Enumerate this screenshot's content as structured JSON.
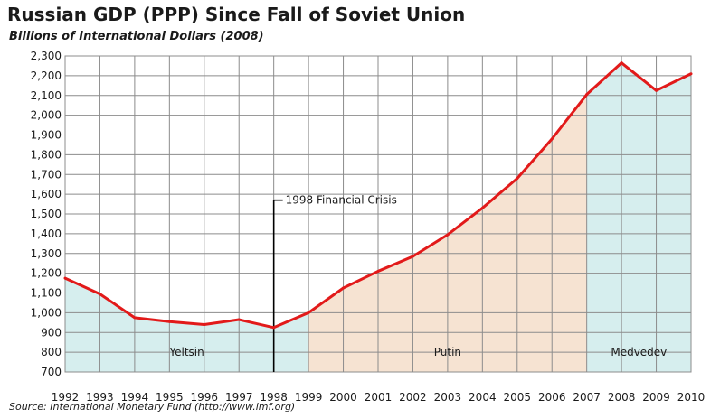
{
  "title": "Russian GDP (PPP) Since Fall of Soviet Union",
  "subtitle": "Billions of International Dollars (2008)",
  "source": "Source: International Monetary Fund (http://www.imf.org)",
  "colors": {
    "line": "#e21a1a",
    "yeltsin_fill": "#d6eeee",
    "putin_fill": "#f6e3d2",
    "medvedev_fill": "#d6eeee",
    "grid": "#8c8c8c",
    "annotation_line": "#000000"
  },
  "chart_data": {
    "type": "area",
    "title": "Russian GDP (PPP) Since Fall of Soviet Union",
    "subtitle": "Billions of International Dollars (2008)",
    "x": [
      1992,
      1993,
      1994,
      1995,
      1996,
      1997,
      1998,
      1999,
      2000,
      2001,
      2002,
      2003,
      2004,
      2005,
      2006,
      2007,
      2008,
      2009,
      2010
    ],
    "x_tick_labels": [
      "1992",
      "1993",
      "1994",
      "1995",
      "1996",
      "1997",
      "1998",
      "1999",
      "2000",
      "2001",
      "2002",
      "2003",
      "2004",
      "2005",
      "2006",
      "2007",
      "2008",
      "2009",
      "2010"
    ],
    "values": [
      1175,
      1095,
      975,
      955,
      940,
      965,
      925,
      1000,
      1125,
      1210,
      1285,
      1395,
      1530,
      1680,
      1880,
      2105,
      2265,
      2125,
      2210
    ],
    "ylim": [
      700,
      2300
    ],
    "y_ticks": [
      700,
      800,
      900,
      1000,
      1100,
      1200,
      1300,
      1400,
      1500,
      1600,
      1700,
      1800,
      1900,
      2000,
      2100,
      2200,
      2300
    ],
    "y_tick_labels": [
      "700",
      "800",
      "900",
      "1,000",
      "1,100",
      "1,200",
      "1,300",
      "1,400",
      "1,500",
      "1,600",
      "1,700",
      "1,800",
      "1,900",
      "2,000",
      "2,100",
      "2,200",
      "2,300"
    ],
    "grid": true,
    "regions": [
      {
        "label": "Yeltsin",
        "start": 1992,
        "end": 1999
      },
      {
        "label": "Putin",
        "start": 1999,
        "end": 2007
      },
      {
        "label": "Medvedev",
        "start": 2007,
        "end": 2010
      }
    ],
    "annotations": [
      {
        "text": "1998 Financial Crisis",
        "x": 1998,
        "y": 1570
      }
    ]
  }
}
